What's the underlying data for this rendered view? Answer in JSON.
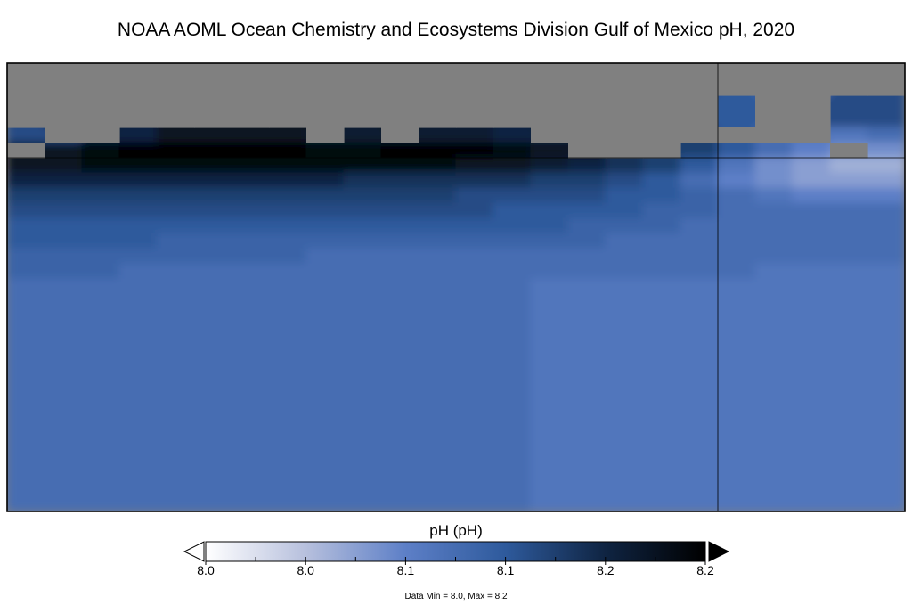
{
  "chart_data": {
    "type": "heatmap",
    "title": "NOAA AOML Ocean Chemistry and Ecosystems Division Gulf of Mexico pH, 2020",
    "colorbar": {
      "label": "pH (pH)",
      "vmin": 8.0,
      "vmax": 8.2,
      "tick_labels": [
        "8.0",
        "8.0",
        "8.1",
        "8.1",
        "8.2",
        "8.2"
      ],
      "colors": [
        "#ffffff",
        "#b7c0dd",
        "#5d7fc7",
        "#2e5a9c",
        "#0f2442",
        "#000000"
      ],
      "extend": "both"
    },
    "missing_color": "#808080",
    "data_range_text": "Data Min = 8.0, Max = 8.2",
    "grid": {
      "values": [
        [
          null,
          null,
          null,
          null,
          null,
          null,
          null,
          null,
          null,
          null,
          null,
          null,
          null,
          null,
          null,
          null,
          null,
          null,
          null,
          null,
          null,
          null,
          null,
          null
        ],
        [
          null,
          null,
          null,
          null,
          null,
          null,
          null,
          null,
          null,
          null,
          null,
          null,
          null,
          null,
          null,
          null,
          null,
          null,
          null,
          8.12,
          null,
          null,
          8.13,
          8.13
        ],
        [
          8.13,
          null,
          null,
          8.16,
          8.18,
          8.18,
          8.18,
          8.18,
          null,
          8.17,
          null,
          8.17,
          8.17,
          8.16,
          null,
          null,
          null,
          null,
          null,
          null,
          null,
          null,
          8.09,
          8.1
        ],
        [
          null,
          8.18,
          8.19,
          8.2,
          8.2,
          8.2,
          8.2,
          8.2,
          8.19,
          8.19,
          8.2,
          8.2,
          8.2,
          8.19,
          8.18,
          null,
          null,
          null,
          8.14,
          8.12,
          8.1,
          8.08,
          null,
          8.07
        ],
        [
          8.18,
          8.18,
          8.19,
          8.19,
          8.19,
          8.19,
          8.19,
          8.19,
          8.19,
          8.19,
          8.19,
          8.19,
          8.18,
          8.18,
          8.17,
          8.16,
          8.15,
          8.14,
          8.12,
          8.09,
          8.07,
          8.06,
          8.05,
          8.05
        ],
        [
          8.16,
          8.16,
          8.16,
          8.16,
          8.16,
          8.16,
          8.16,
          8.16,
          8.16,
          8.15,
          8.15,
          8.15,
          8.15,
          8.15,
          8.14,
          8.14,
          8.13,
          8.12,
          8.1,
          8.08,
          8.07,
          8.06,
          8.06,
          8.06
        ],
        [
          8.14,
          8.14,
          8.14,
          8.14,
          8.14,
          8.14,
          8.14,
          8.14,
          8.14,
          8.14,
          8.14,
          8.14,
          8.13,
          8.13,
          8.13,
          8.13,
          8.12,
          8.12,
          8.11,
          8.1,
          8.09,
          8.08,
          8.08,
          8.08
        ],
        [
          8.13,
          8.13,
          8.13,
          8.13,
          8.13,
          8.13,
          8.13,
          8.13,
          8.13,
          8.13,
          8.13,
          8.13,
          8.13,
          8.12,
          8.12,
          8.12,
          8.12,
          8.11,
          8.11,
          8.1,
          8.1,
          8.1,
          8.1,
          8.1
        ],
        [
          8.12,
          8.12,
          8.12,
          8.12,
          8.12,
          8.12,
          8.12,
          8.12,
          8.12,
          8.12,
          8.12,
          8.12,
          8.12,
          8.12,
          8.12,
          8.11,
          8.11,
          8.11,
          8.1,
          8.1,
          8.1,
          8.1,
          8.1,
          8.1
        ],
        [
          8.12,
          8.12,
          8.12,
          8.12,
          8.11,
          8.11,
          8.11,
          8.11,
          8.11,
          8.11,
          8.11,
          8.11,
          8.11,
          8.11,
          8.11,
          8.11,
          8.1,
          8.1,
          8.1,
          8.1,
          8.1,
          8.1,
          8.1,
          8.1
        ],
        [
          8.11,
          8.11,
          8.11,
          8.11,
          8.11,
          8.11,
          8.11,
          8.11,
          8.1,
          8.1,
          8.1,
          8.1,
          8.1,
          8.1,
          8.1,
          8.1,
          8.1,
          8.1,
          8.1,
          8.1,
          8.1,
          8.1,
          8.1,
          8.1
        ],
        [
          8.11,
          8.11,
          8.11,
          8.1,
          8.1,
          8.1,
          8.1,
          8.1,
          8.1,
          8.1,
          8.1,
          8.1,
          8.1,
          8.1,
          8.1,
          8.1,
          8.1,
          8.1,
          8.1,
          8.1,
          8.09,
          8.09,
          8.09,
          8.09
        ],
        [
          8.1,
          8.1,
          8.1,
          8.1,
          8.1,
          8.1,
          8.1,
          8.1,
          8.1,
          8.1,
          8.1,
          8.1,
          8.1,
          8.1,
          8.09,
          8.09,
          8.09,
          8.09,
          8.09,
          8.09,
          8.09,
          8.09,
          8.09,
          8.09
        ]
      ]
    }
  }
}
